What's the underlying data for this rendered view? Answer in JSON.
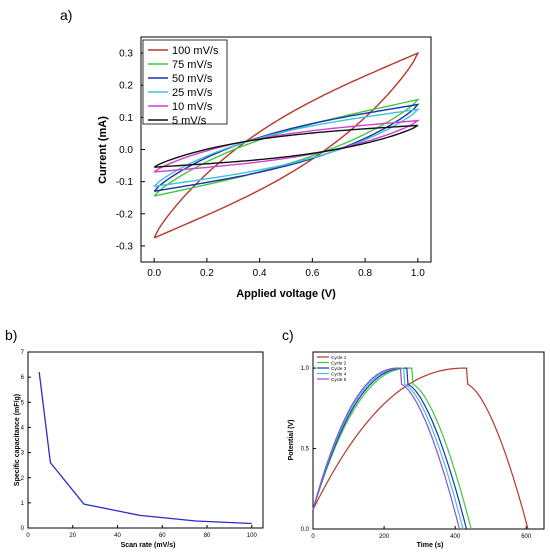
{
  "panels": [
    {
      "label": "a)",
      "chart_data": {
        "type": "line",
        "title": "",
        "xlabel": "Applied voltage (V)",
        "ylabel": "Current (mA)",
        "xlim": [
          -0.05,
          1.05
        ],
        "ylim": [
          -0.35,
          0.35
        ],
        "xticks": [
          0.0,
          0.2,
          0.4,
          0.6,
          0.8,
          1.0
        ],
        "xtick_labels": [
          "0.0",
          "0.2",
          "0.4",
          "0.6",
          "0.8",
          "1.0"
        ],
        "yticks": [
          -0.3,
          -0.2,
          -0.1,
          0.0,
          0.1,
          0.2,
          0.3
        ],
        "ytick_labels": [
          "-0.3",
          "-0.2",
          "-0.1",
          "0.0",
          "0.1",
          "0.2",
          "0.3"
        ],
        "grid": false,
        "legend_position": "top-left",
        "curve_type": "cyclic-voltammogram",
        "series": [
          {
            "name": "100 mV/s",
            "color": "#b5382a",
            "x_range": [
              0,
              1
            ],
            "forward_y": [
              -0.275,
              0.0,
              0.3
            ],
            "reverse_y": [
              0.3,
              0.0,
              -0.275
            ],
            "forward_bulge": 0.1,
            "reverse_bulge": -0.1
          },
          {
            "name": "75 mV/s",
            "color": "#3ec93e",
            "x_range": [
              0,
              1
            ],
            "forward_y": [
              -0.145,
              0.0,
              0.155
            ],
            "reverse_y": [
              0.155,
              0.0,
              -0.145
            ],
            "forward_bulge": 0.055,
            "reverse_bulge": -0.055
          },
          {
            "name": "50 mV/s",
            "color": "#1f2fb0",
            "x_range": [
              0,
              1
            ],
            "forward_y": [
              -0.13,
              0.0,
              0.14
            ],
            "reverse_y": [
              0.14,
              0.0,
              -0.13
            ],
            "forward_bulge": 0.06,
            "reverse_bulge": -0.06
          },
          {
            "name": "25 mV/s",
            "color": "#3fc3d8",
            "x_range": [
              0,
              1
            ],
            "forward_y": [
              -0.115,
              0.0,
              0.125
            ],
            "reverse_y": [
              0.125,
              0.0,
              -0.115
            ],
            "forward_bulge": 0.055,
            "reverse_bulge": -0.055
          },
          {
            "name": "10 mV/s",
            "color": "#d43fd4",
            "x_range": [
              0,
              1
            ],
            "forward_y": [
              -0.07,
              0.0,
              0.09
            ],
            "reverse_y": [
              0.09,
              0.0,
              -0.07
            ],
            "forward_bulge": 0.04,
            "reverse_bulge": -0.04
          },
          {
            "name": "5 mV/s",
            "color": "#111111",
            "x_range": [
              0,
              1
            ],
            "forward_y": [
              -0.055,
              0.0,
              0.075
            ],
            "reverse_y": [
              0.075,
              0.0,
              -0.055
            ],
            "forward_bulge": 0.035,
            "reverse_bulge": -0.035
          }
        ]
      }
    },
    {
      "label": "b)",
      "chart_data": {
        "type": "line",
        "title": "",
        "xlabel": "Scan rate (mV/s)",
        "ylabel": "Specific capacitance (mF/g)",
        "xlim": [
          0,
          105
        ],
        "ylim": [
          0,
          7
        ],
        "xticks": [
          0,
          20,
          40,
          60,
          80,
          100
        ],
        "xtick_labels": [
          "0",
          "20",
          "40",
          "60",
          "80",
          "100"
        ],
        "yticks": [
          0,
          1,
          2,
          3,
          4,
          5,
          6,
          7
        ],
        "ytick_labels": [
          "0",
          "1",
          "2",
          "3",
          "4",
          "5",
          "6",
          "7"
        ],
        "grid": false,
        "series": [
          {
            "color": "#2b2bc7",
            "x": [
              5,
              10,
              25,
              50,
              75,
              100
            ],
            "y": [
              6.2,
              2.6,
              0.95,
              0.5,
              0.28,
              0.18
            ]
          }
        ]
      }
    },
    {
      "label": "c)",
      "chart_data": {
        "type": "line",
        "title": "",
        "xlabel": "Time (s)",
        "ylabel": "Potential (V)",
        "xlim": [
          0,
          650
        ],
        "ylim": [
          0,
          1.1
        ],
        "xticks": [
          0,
          200,
          400,
          600
        ],
        "xtick_labels": [
          "0",
          "200",
          "400",
          "600"
        ],
        "yticks": [
          0.0,
          0.5,
          1.0
        ],
        "ytick_labels": [
          "0.0",
          "0.5",
          "1.0"
        ],
        "grid": false,
        "legend_position": "top-left",
        "curve_type": "galvanostatic-charge-discharge",
        "series": [
          {
            "name": "Cycle 1",
            "color": "#b5382a",
            "charge_end_s": 430,
            "discharge_start_s": 432,
            "discharge_end_s": 605
          },
          {
            "name": "Cycle 2",
            "color": "#3ec93e",
            "charge_end_s": 270,
            "discharge_start_s": 278,
            "discharge_end_s": 445
          },
          {
            "name": "Cycle 3",
            "color": "#1f2fb0",
            "charge_end_s": 258,
            "discharge_start_s": 264,
            "discharge_end_s": 432
          },
          {
            "name": "Cycle 4",
            "color": "#3fc3d8",
            "charge_end_s": 248,
            "discharge_start_s": 255,
            "discharge_end_s": 422
          },
          {
            "name": "Cycle 5",
            "color": "#8a4fd8",
            "charge_end_s": 240,
            "discharge_start_s": 246,
            "discharge_end_s": 412
          }
        ]
      }
    }
  ]
}
